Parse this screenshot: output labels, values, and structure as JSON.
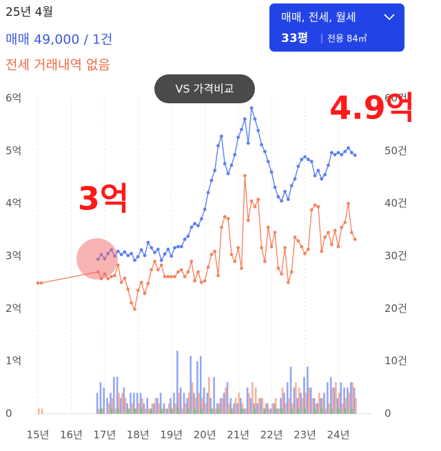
{
  "summary": {
    "date": "25년 4월",
    "sale": "매매 49,000 / 1건",
    "jeonse": "전세 거래내역 없음"
  },
  "filter": {
    "types": "매매, 전세, 월세",
    "size": "33평",
    "area": "전용 84㎡"
  },
  "compare_button": "VS 가격비교",
  "chart_data": {
    "type": "combo",
    "annotations": [
      "3억",
      "4.9억"
    ],
    "xlim": [
      15,
      25
    ],
    "xticks": [
      {
        "value": 15,
        "label": "15년"
      },
      {
        "value": 16,
        "label": "16년"
      },
      {
        "value": 17,
        "label": "17년"
      },
      {
        "value": 18,
        "label": "18년"
      },
      {
        "value": 19,
        "label": "19년"
      },
      {
        "value": 20,
        "label": "20년"
      },
      {
        "value": 21,
        "label": "21년"
      },
      {
        "value": 22,
        "label": "22년"
      },
      {
        "value": 23,
        "label": "23년"
      },
      {
        "value": 24,
        "label": "24년"
      }
    ],
    "ylim": [
      0,
      6
    ],
    "yticks": [
      0,
      {
        "value": 1,
        "label": "1억"
      },
      {
        "value": 2,
        "label": "2억"
      },
      {
        "value": 3,
        "label": "3억"
      },
      {
        "value": 4,
        "label": "4억"
      },
      {
        "value": 5,
        "label": "5억"
      },
      {
        "value": 6,
        "label": "6억"
      }
    ],
    "y2lim": [
      0,
      60
    ],
    "y2ticks": [
      0,
      {
        "value": 10,
        "label": "10건"
      },
      {
        "value": 20,
        "label": "20건"
      },
      {
        "value": 30,
        "label": "30건"
      },
      {
        "value": 40,
        "label": "40건"
      },
      {
        "value": 50,
        "label": "50건"
      },
      {
        "value": 60,
        "label": "60건"
      }
    ],
    "grid": true,
    "series": [
      {
        "type": "bar",
        "axis": "y2",
        "color": "#7f97f3",
        "x": [
          16.8,
          16.9,
          17,
          17.1,
          17.2,
          17.3,
          17.4,
          17.5,
          17.6,
          17.7,
          17.8,
          17.9,
          18,
          18.1,
          18.2,
          18.3,
          18.4,
          18.5,
          18.6,
          18.7,
          18.8,
          18.9,
          19,
          19.1,
          19.2,
          19.3,
          19.4,
          19.5,
          19.6,
          19.7,
          19.8,
          19.9,
          20,
          20.1,
          20.2,
          20.3,
          20.4,
          20.5,
          20.6,
          20.7,
          20.8,
          20.9,
          21,
          21.1,
          21.2,
          21.3,
          21.4,
          21.5,
          21.6,
          21.7,
          21.8,
          21.9,
          22,
          22.1,
          22.2,
          22.3,
          22.4,
          22.5,
          22.6,
          22.7,
          22.8,
          22.9,
          23,
          23.1,
          23.2,
          23.3,
          23.4,
          23.5,
          23.6,
          23.7,
          23.8,
          23.9,
          24,
          24.1,
          24.2,
          24.3,
          24.4,
          24.5
        ],
        "values": [
          4,
          6,
          5,
          3,
          4,
          7,
          7,
          3,
          5,
          2,
          4,
          4,
          4,
          4,
          2,
          3,
          1,
          2,
          3,
          4,
          2,
          1,
          3,
          4,
          12,
          5,
          4,
          3,
          11,
          4,
          10,
          11,
          5,
          4,
          3,
          7,
          2,
          3,
          4,
          6,
          3,
          2,
          2,
          3,
          1,
          5,
          3,
          2,
          2,
          3,
          1,
          2,
          1,
          2,
          1,
          3,
          4,
          6,
          9,
          5,
          3,
          4,
          7,
          9,
          5,
          3,
          2,
          3,
          4,
          6,
          7,
          5,
          3,
          6,
          5,
          5,
          6,
          5
        ]
      },
      {
        "type": "bar",
        "axis": "y2",
        "color": "#f7a48a",
        "x": [
          15,
          15.1,
          16.8,
          16.9,
          17,
          17.1,
          17.2,
          17.3,
          17.4,
          17.5,
          17.6,
          17.7,
          17.8,
          17.9,
          18,
          18.1,
          18.2,
          18.3,
          18.4,
          18.5,
          18.6,
          18.7,
          18.8,
          18.9,
          19,
          19.1,
          19.2,
          19.3,
          19.4,
          19.5,
          19.6,
          19.7,
          19.8,
          19.9,
          20,
          20.1,
          20.2,
          20.3,
          20.4,
          20.5,
          20.6,
          20.7,
          20.8,
          20.9,
          21,
          21.1,
          21.2,
          21.3,
          21.4,
          21.5,
          21.6,
          21.7,
          21.8,
          21.9,
          22,
          22.1,
          22.2,
          22.3,
          22.4,
          22.5,
          22.6,
          22.7,
          22.8,
          22.9,
          23,
          23.1,
          23.2,
          23.3,
          23.4,
          23.5,
          23.6,
          23.7,
          23.8,
          23.9,
          24,
          24.1,
          24.2,
          24.3,
          24.4,
          24.5
        ],
        "values": [
          1,
          1,
          1,
          1,
          0,
          2,
          3,
          1,
          4,
          4,
          3,
          1,
          2,
          1,
          2,
          3,
          1,
          1,
          2,
          3,
          2,
          1,
          1,
          2,
          1,
          2,
          4,
          1,
          2,
          4,
          6,
          3,
          4,
          3,
          2,
          7,
          1,
          1,
          2,
          3,
          5,
          2,
          1,
          3,
          4,
          2,
          1,
          4,
          6,
          5,
          3,
          3,
          2,
          1,
          2,
          3,
          1,
          5,
          2,
          3,
          2,
          6,
          5,
          3,
          4,
          5,
          3,
          2,
          4,
          3,
          1,
          2,
          5,
          6,
          4,
          2,
          3,
          4,
          6,
          3
        ]
      },
      {
        "type": "bar",
        "axis": "y2",
        "color": "#5fcf5f",
        "x": [
          16.8,
          16.9,
          17,
          17.1,
          17.2,
          17.3,
          17.4,
          17.5,
          17.6,
          17.7,
          17.8,
          17.9,
          18,
          18.1,
          18.2,
          18.3,
          18.4,
          18.5,
          18.6,
          18.7,
          18.8,
          18.9,
          19,
          19.1,
          19.2,
          19.3,
          19.4,
          19.5,
          19.6,
          19.7,
          19.8,
          19.9,
          20,
          20.1,
          20.2,
          20.3,
          20.4,
          20.5,
          20.6,
          20.7,
          20.8,
          20.9,
          21,
          21.1,
          21.2,
          21.3,
          21.4,
          21.5,
          21.6,
          21.7,
          21.8,
          21.9,
          22,
          22.1,
          22.2,
          22.3,
          22.4,
          22.5,
          22.6,
          22.7,
          22.8,
          22.9,
          23,
          23.1,
          23.2,
          23.3,
          23.4,
          23.5,
          23.6,
          23.7,
          23.8,
          23.9,
          24,
          24.1,
          24.2,
          24.3,
          24.4,
          24.5
        ],
        "values": [
          0,
          1,
          0,
          0,
          1,
          0,
          1,
          0,
          0,
          1,
          0,
          1,
          0,
          1,
          0,
          0,
          1,
          0,
          0,
          1,
          0,
          0,
          1,
          0,
          1,
          0,
          0,
          1,
          0,
          1,
          0,
          1,
          0,
          0,
          1,
          0,
          1,
          0,
          0,
          0,
          1,
          0,
          0,
          1,
          0,
          0,
          0,
          1,
          0,
          0,
          1,
          0,
          0,
          1,
          0,
          1,
          0,
          0,
          1,
          0,
          1,
          0,
          1,
          0,
          0,
          1,
          0,
          1,
          0,
          0,
          1,
          0,
          1,
          0,
          1,
          0,
          1,
          0
        ]
      },
      {
        "type": "line",
        "color": "#f4845f",
        "x": [
          15,
          15.1,
          16.8,
          16.9,
          17,
          17.1,
          17.2,
          17.3,
          17.4,
          17.5,
          17.6,
          17.7,
          17.8,
          17.9,
          18,
          18.1,
          18.2,
          18.3,
          18.4,
          18.5,
          18.6,
          18.7,
          18.8,
          18.9,
          19,
          19.1,
          19.2,
          19.3,
          19.4,
          19.5,
          19.6,
          19.7,
          19.8,
          19.9,
          20,
          20.1,
          20.2,
          20.3,
          20.4,
          20.5,
          20.6,
          20.7,
          20.8,
          20.9,
          21,
          21.1,
          21.2,
          21.3,
          21.4,
          21.5,
          21.6,
          21.7,
          21.8,
          21.9,
          22,
          22.1,
          22.2,
          22.3,
          22.4,
          22.5,
          22.6,
          22.7,
          22.8,
          22.9,
          23,
          23.1,
          23.2,
          23.3,
          23.4,
          23.5,
          23.6,
          23.7,
          23.8,
          23.9,
          24,
          24.1,
          24.2,
          24.3,
          24.4,
          24.5
        ],
        "values": [
          2.49,
          2.49,
          2.7,
          2.57,
          2.66,
          2.57,
          2.61,
          2.63,
          2.83,
          2.5,
          2.58,
          2.37,
          2.11,
          1.99,
          2.35,
          2.5,
          2.29,
          2.48,
          2.74,
          2.9,
          2.74,
          2.83,
          2.61,
          2.61,
          2.61,
          2.61,
          2.7,
          2.74,
          2.61,
          2.7,
          2.9,
          2.53,
          2.7,
          2.5,
          2.53,
          2.79,
          3.03,
          3.09,
          2.63,
          3.55,
          3.75,
          3.71,
          3.03,
          2.9,
          3.16,
          2.77,
          4.53,
          3.68,
          4.05,
          3.94,
          4.08,
          3.16,
          2.9,
          3.55,
          3.18,
          3.45,
          2.77,
          2.66,
          3.16,
          2.5,
          2.7,
          3.36,
          3.29,
          3.18,
          3.05,
          3.13,
          3.88,
          3.97,
          3.94,
          3.09,
          3.36,
          3.45,
          3.22,
          3.49,
          3.18,
          3.55,
          3.64,
          4.0,
          3.45,
          3.32
        ]
      },
      {
        "type": "line",
        "color": "#5b7ff0",
        "x": [
          16.8,
          16.9,
          17,
          17.1,
          17.2,
          17.3,
          17.4,
          17.5,
          17.6,
          17.7,
          17.8,
          17.9,
          18,
          18.1,
          18.2,
          18.3,
          18.4,
          18.5,
          18.6,
          18.7,
          18.8,
          18.9,
          19,
          19.1,
          19.2,
          19.3,
          19.4,
          19.5,
          19.6,
          19.7,
          19.8,
          19.9,
          20,
          20.1,
          20.2,
          20.3,
          20.4,
          20.5,
          20.6,
          20.7,
          20.8,
          20.9,
          21,
          21.1,
          21.2,
          21.3,
          21.4,
          21.5,
          21.6,
          21.7,
          21.8,
          21.9,
          22,
          22.1,
          22.2,
          22.3,
          22.4,
          22.5,
          22.6,
          22.7,
          22.8,
          22.9,
          23,
          23.1,
          23.2,
          23.3,
          23.4,
          23.5,
          23.6,
          23.7,
          23.8,
          23.9,
          24,
          24.1,
          24.2,
          24.3,
          24.4,
          24.5
        ],
        "values": [
          2.94,
          3.03,
          2.95,
          3.05,
          3.12,
          3.0,
          3.09,
          3.03,
          3.08,
          3.01,
          3.05,
          2.92,
          2.99,
          3.12,
          3.01,
          3.26,
          3.16,
          3.07,
          3.13,
          2.92,
          3.04,
          3.13,
          3.0,
          3.16,
          3.18,
          3.18,
          3.32,
          3.38,
          3.55,
          3.62,
          3.58,
          3.71,
          3.89,
          4.21,
          4.44,
          4.63,
          5.1,
          5.28,
          4.76,
          4.57,
          4.73,
          4.93,
          5.26,
          5.41,
          5.61,
          5.15,
          5.82,
          5.61,
          5.39,
          5.12,
          4.99,
          4.8,
          4.6,
          4.31,
          4.13,
          4.05,
          4.23,
          4.08,
          4.34,
          4.47,
          4.71,
          4.84,
          4.89,
          4.84,
          4.8,
          4.53,
          4.63,
          4.47,
          4.55,
          4.73,
          4.97,
          4.93,
          4.97,
          4.93,
          4.99,
          5.06,
          4.97,
          4.92
        ]
      }
    ]
  }
}
